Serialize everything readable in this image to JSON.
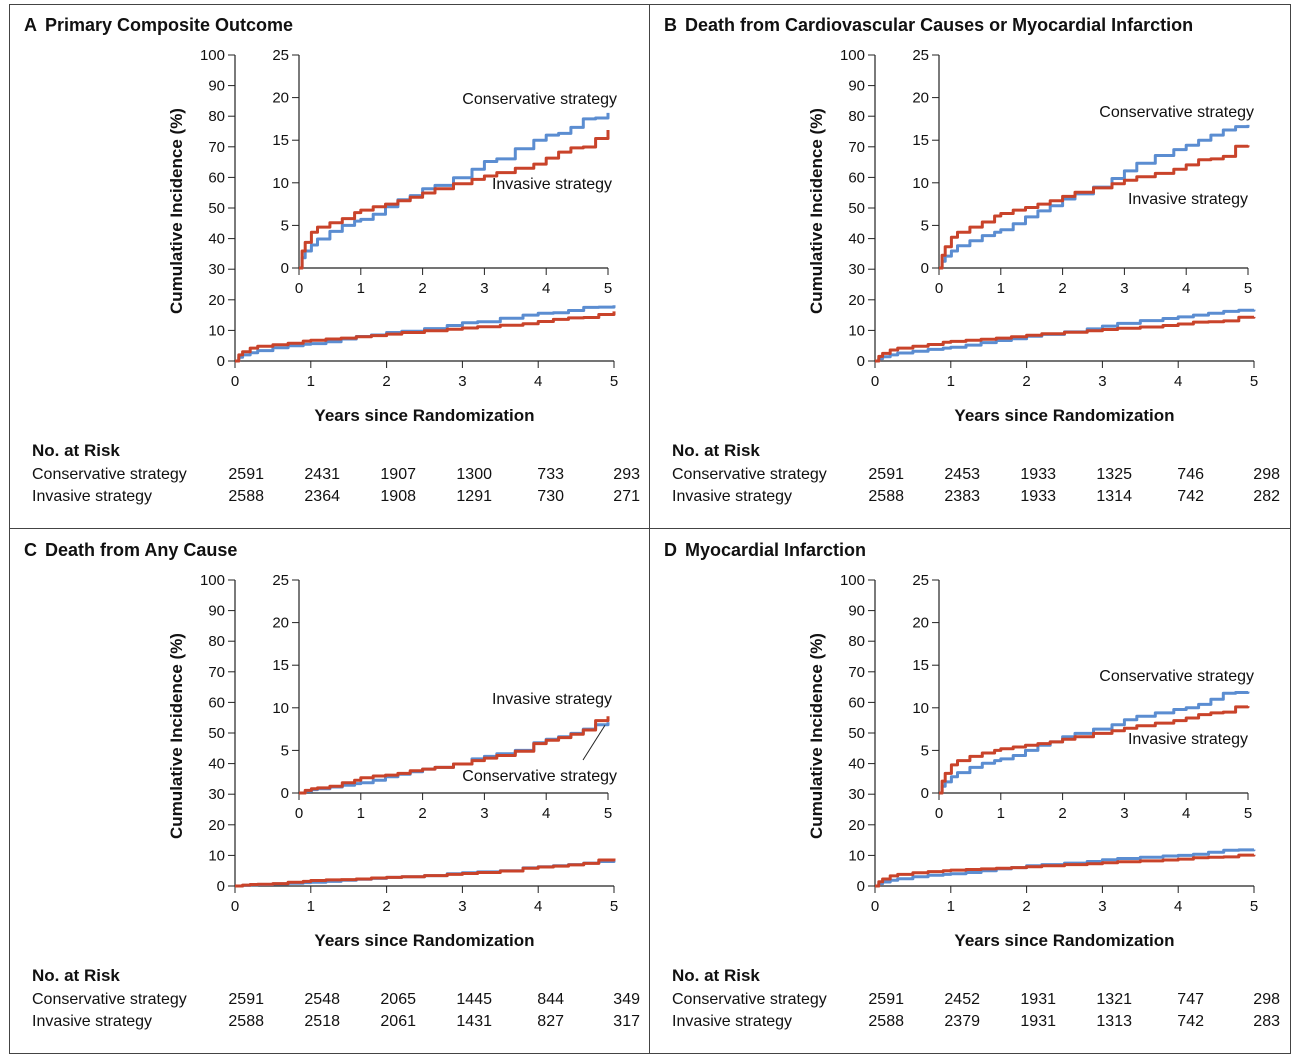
{
  "risk_header": "No. at Risk",
  "panels": [
    {
      "letter": "A",
      "title": "Primary Composite Outcome",
      "risk": [
        {
          "label": "Conservative strategy",
          "values": [
            "2591",
            "2431",
            "1907",
            "1300",
            "733",
            "293"
          ]
        },
        {
          "label": "Invasive strategy",
          "values": [
            "2588",
            "2364",
            "1908",
            "1291",
            "730",
            "271"
          ]
        }
      ]
    },
    {
      "letter": "B",
      "title": "Death from Cardiovascular Causes or Myocardial Infarction",
      "risk": [
        {
          "label": "Conservative strategy",
          "values": [
            "2591",
            "2453",
            "1933",
            "1325",
            "746",
            "298"
          ]
        },
        {
          "label": "Invasive strategy",
          "values": [
            "2588",
            "2383",
            "1933",
            "1314",
            "742",
            "282"
          ]
        }
      ]
    },
    {
      "letter": "C",
      "title": "Death from Any Cause",
      "risk": [
        {
          "label": "Conservative strategy",
          "values": [
            "2591",
            "2548",
            "2065",
            "1445",
            "844",
            "349"
          ]
        },
        {
          "label": "Invasive strategy",
          "values": [
            "2588",
            "2518",
            "2061",
            "1431",
            "827",
            "317"
          ]
        }
      ]
    },
    {
      "letter": "D",
      "title": "Myocardial Infarction",
      "risk": [
        {
          "label": "Conservative strategy",
          "values": [
            "2591",
            "2452",
            "1931",
            "1321",
            "747",
            "298"
          ]
        },
        {
          "label": "Invasive strategy",
          "values": [
            "2588",
            "2379",
            "1931",
            "1313",
            "742",
            "283"
          ]
        }
      ]
    }
  ],
  "chart_data": [
    {
      "type": "line",
      "title": "Primary Composite Outcome",
      "xlabel": "Years since Randomization",
      "ylabel": "Cumulative Incidence (%)",
      "xlim": [
        0,
        5
      ],
      "ylim": [
        0,
        100
      ],
      "inset_ylim": [
        0,
        25
      ],
      "xticks": [
        "0",
        "1",
        "2",
        "3",
        "4",
        "5"
      ],
      "yticks": [
        "0",
        "10",
        "20",
        "30",
        "40",
        "50",
        "60",
        "70",
        "80",
        "90",
        "100"
      ],
      "inset_xticks": [
        "0",
        "1",
        "2",
        "3",
        "4",
        "5"
      ],
      "inset_yticks": [
        "0",
        "5",
        "10",
        "15",
        "20",
        "25"
      ],
      "colors": {
        "conservative": "#5b8dd1",
        "invasive": "#c9432a"
      },
      "annotations": [
        {
          "text": "Conservative strategy",
          "series": "conservative"
        },
        {
          "text": "Invasive strategy",
          "series": "invasive"
        }
      ],
      "series": [
        {
          "name": "Conservative strategy",
          "key": "conservative",
          "x": [
            0,
            0.05,
            0.1,
            0.2,
            0.3,
            0.5,
            0.7,
            0.9,
            1.0,
            1.2,
            1.4,
            1.6,
            1.8,
            2.0,
            2.2,
            2.5,
            2.8,
            3.0,
            3.2,
            3.5,
            3.8,
            4.0,
            4.2,
            4.4,
            4.6,
            4.8,
            5.0
          ],
          "y": [
            0,
            1.2,
            2.0,
            2.7,
            3.4,
            4.3,
            5.0,
            5.5,
            5.7,
            6.3,
            7.2,
            8.0,
            8.5,
            9.3,
            9.7,
            10.6,
            11.6,
            12.5,
            12.8,
            14.0,
            15.0,
            15.6,
            15.8,
            16.5,
            17.5,
            17.6,
            18.2
          ]
        },
        {
          "name": "Invasive strategy",
          "key": "invasive",
          "x": [
            0,
            0.05,
            0.1,
            0.2,
            0.3,
            0.5,
            0.7,
            0.9,
            1.0,
            1.2,
            1.4,
            1.6,
            1.8,
            2.0,
            2.2,
            2.5,
            2.8,
            3.0,
            3.2,
            3.5,
            3.8,
            4.0,
            4.2,
            4.4,
            4.6,
            4.8,
            5.0
          ],
          "y": [
            0,
            2.0,
            3.0,
            4.2,
            4.8,
            5.3,
            5.8,
            6.5,
            6.8,
            7.2,
            7.5,
            7.9,
            8.3,
            8.8,
            9.3,
            9.9,
            10.4,
            10.8,
            11.2,
            11.7,
            12.2,
            12.9,
            13.6,
            14.1,
            14.2,
            15.2,
            16.2
          ]
        }
      ]
    },
    {
      "type": "line",
      "title": "Death from Cardiovascular Causes or Myocardial Infarction",
      "xlabel": "Years since Randomization",
      "ylabel": "Cumulative Incidence (%)",
      "xlim": [
        0,
        5
      ],
      "ylim": [
        0,
        100
      ],
      "inset_ylim": [
        0,
        25
      ],
      "xticks": [
        "0",
        "1",
        "2",
        "3",
        "4",
        "5"
      ],
      "yticks": [
        "0",
        "10",
        "20",
        "30",
        "40",
        "50",
        "60",
        "70",
        "80",
        "90",
        "100"
      ],
      "inset_xticks": [
        "0",
        "1",
        "2",
        "3",
        "4",
        "5"
      ],
      "inset_yticks": [
        "0",
        "5",
        "10",
        "15",
        "20",
        "25"
      ],
      "colors": {
        "conservative": "#5b8dd1",
        "invasive": "#c9432a"
      },
      "annotations": [
        {
          "text": "Conservative strategy",
          "series": "conservative"
        },
        {
          "text": "Invasive strategy",
          "series": "invasive"
        }
      ],
      "series": [
        {
          "name": "Conservative strategy",
          "key": "conservative",
          "x": [
            0,
            0.05,
            0.1,
            0.2,
            0.3,
            0.5,
            0.7,
            0.9,
            1.0,
            1.2,
            1.4,
            1.6,
            1.8,
            2.0,
            2.2,
            2.5,
            2.8,
            3.0,
            3.2,
            3.5,
            3.8,
            4.0,
            4.2,
            4.4,
            4.6,
            4.8,
            5.0
          ],
          "y": [
            0,
            0.8,
            1.4,
            2.0,
            2.6,
            3.2,
            3.8,
            4.2,
            4.5,
            5.2,
            6.0,
            6.7,
            7.3,
            8.1,
            8.7,
            9.5,
            10.5,
            11.4,
            12.3,
            13.2,
            13.9,
            14.4,
            15.0,
            15.6,
            16.2,
            16.6,
            16.8
          ]
        },
        {
          "name": "Invasive strategy",
          "key": "invasive",
          "x": [
            0,
            0.05,
            0.1,
            0.2,
            0.3,
            0.5,
            0.7,
            0.9,
            1.0,
            1.2,
            1.4,
            1.6,
            1.8,
            2.0,
            2.2,
            2.5,
            2.8,
            3.0,
            3.2,
            3.5,
            3.8,
            4.0,
            4.2,
            4.4,
            4.6,
            4.8,
            5.0
          ],
          "y": [
            0,
            1.5,
            2.5,
            3.6,
            4.2,
            4.8,
            5.4,
            6.1,
            6.4,
            6.8,
            7.1,
            7.5,
            7.9,
            8.4,
            8.9,
            9.4,
            9.9,
            10.3,
            10.7,
            11.1,
            11.6,
            12.1,
            12.7,
            12.8,
            13.1,
            14.3,
            14.4
          ]
        }
      ]
    },
    {
      "type": "line",
      "title": "Death from Any Cause",
      "xlabel": "Years since Randomization",
      "ylabel": "Cumulative Incidence (%)",
      "xlim": [
        0,
        5
      ],
      "ylim": [
        0,
        100
      ],
      "inset_ylim": [
        0,
        25
      ],
      "xticks": [
        "0",
        "1",
        "2",
        "3",
        "4",
        "5"
      ],
      "yticks": [
        "0",
        "10",
        "20",
        "30",
        "40",
        "50",
        "60",
        "70",
        "80",
        "90",
        "100"
      ],
      "inset_xticks": [
        "0",
        "1",
        "2",
        "3",
        "4",
        "5"
      ],
      "inset_yticks": [
        "0",
        "5",
        "10",
        "15",
        "20",
        "25"
      ],
      "colors": {
        "conservative": "#5b8dd1",
        "invasive": "#c9432a"
      },
      "annotations": [
        {
          "text": "Invasive strategy",
          "series": "invasive"
        },
        {
          "text": "Conservative strategy",
          "series": "conservative"
        }
      ],
      "series": [
        {
          "name": "Conservative strategy",
          "key": "conservative",
          "x": [
            0,
            0.1,
            0.2,
            0.3,
            0.5,
            0.7,
            0.9,
            1.0,
            1.2,
            1.4,
            1.6,
            1.8,
            2.0,
            2.2,
            2.5,
            2.8,
            3.0,
            3.2,
            3.5,
            3.8,
            4.0,
            4.2,
            4.4,
            4.6,
            4.8,
            5.0
          ],
          "y": [
            0,
            0.2,
            0.4,
            0.5,
            0.7,
            0.9,
            1.1,
            1.2,
            1.5,
            1.9,
            2.2,
            2.5,
            2.8,
            3.0,
            3.4,
            4.0,
            4.3,
            4.6,
            5.0,
            5.9,
            6.3,
            6.6,
            7.0,
            7.5,
            8.0,
            8.3
          ]
        },
        {
          "name": "Invasive strategy",
          "key": "invasive",
          "x": [
            0,
            0.1,
            0.2,
            0.3,
            0.5,
            0.7,
            0.9,
            1.0,
            1.2,
            1.4,
            1.6,
            1.8,
            2.0,
            2.2,
            2.5,
            2.8,
            3.0,
            3.2,
            3.5,
            3.8,
            4.0,
            4.2,
            4.4,
            4.6,
            4.8,
            5.0
          ],
          "y": [
            0,
            0.3,
            0.5,
            0.6,
            0.8,
            1.2,
            1.5,
            1.8,
            2.0,
            2.1,
            2.3,
            2.6,
            2.8,
            3.0,
            3.4,
            3.8,
            4.1,
            4.4,
            4.9,
            5.8,
            6.2,
            6.5,
            6.9,
            7.4,
            8.5,
            9.0
          ]
        }
      ]
    },
    {
      "type": "line",
      "title": "Myocardial Infarction",
      "xlabel": "Years since Randomization",
      "ylabel": "Cumulative Incidence (%)",
      "xlim": [
        0,
        5
      ],
      "ylim": [
        0,
        100
      ],
      "inset_ylim": [
        0,
        25
      ],
      "xticks": [
        "0",
        "1",
        "2",
        "3",
        "4",
        "5"
      ],
      "yticks": [
        "0",
        "10",
        "20",
        "30",
        "40",
        "50",
        "60",
        "70",
        "80",
        "90",
        "100"
      ],
      "inset_xticks": [
        "0",
        "1",
        "2",
        "3",
        "4",
        "5"
      ],
      "inset_yticks": [
        "0",
        "5",
        "10",
        "15",
        "20",
        "25"
      ],
      "colors": {
        "conservative": "#5b8dd1",
        "invasive": "#c9432a"
      },
      "annotations": [
        {
          "text": "Conservative strategy",
          "series": "conservative"
        },
        {
          "text": "Invasive strategy",
          "series": "invasive"
        }
      ],
      "series": [
        {
          "name": "Conservative strategy",
          "key": "conservative",
          "x": [
            0,
            0.05,
            0.1,
            0.2,
            0.3,
            0.5,
            0.7,
            0.9,
            1.0,
            1.2,
            1.4,
            1.6,
            1.8,
            2.0,
            2.2,
            2.5,
            2.8,
            3.0,
            3.2,
            3.5,
            3.8,
            4.0,
            4.2,
            4.4,
            4.6,
            4.8,
            5.0
          ],
          "y": [
            0,
            0.8,
            1.3,
            1.9,
            2.4,
            3.0,
            3.5,
            3.8,
            4.0,
            4.4,
            5.0,
            5.6,
            6.0,
            6.6,
            7.0,
            7.5,
            8.0,
            8.6,
            9.0,
            9.4,
            9.8,
            10.0,
            10.4,
            11.0,
            11.7,
            11.8,
            11.9
          ]
        },
        {
          "name": "Invasive strategy",
          "key": "invasive",
          "x": [
            0,
            0.05,
            0.1,
            0.2,
            0.3,
            0.5,
            0.7,
            0.9,
            1.0,
            1.2,
            1.4,
            1.6,
            1.8,
            2.0,
            2.2,
            2.5,
            2.8,
            3.0,
            3.2,
            3.5,
            3.8,
            4.0,
            4.2,
            4.4,
            4.6,
            4.8,
            5.0
          ],
          "y": [
            0,
            1.4,
            2.3,
            3.3,
            3.8,
            4.3,
            4.7,
            5.0,
            5.2,
            5.4,
            5.6,
            5.8,
            6.0,
            6.3,
            6.6,
            7.0,
            7.3,
            7.6,
            7.9,
            8.2,
            8.5,
            8.8,
            9.2,
            9.4,
            9.5,
            10.1,
            10.2
          ]
        }
      ]
    }
  ]
}
